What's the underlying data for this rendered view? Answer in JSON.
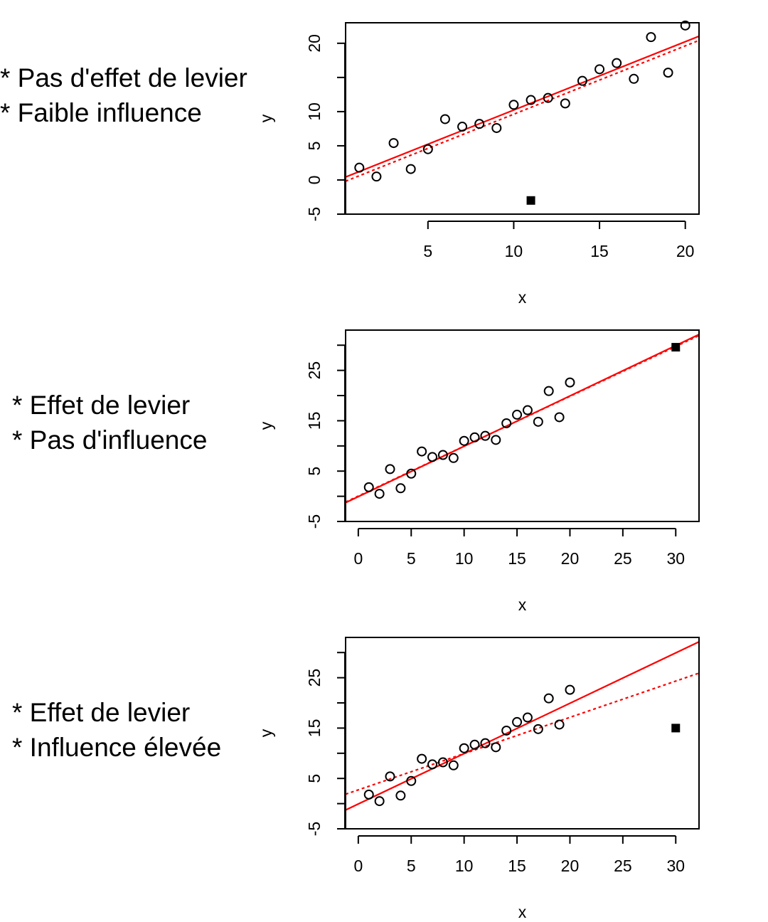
{
  "colors": {
    "fit_line": "#ff0000",
    "points": "#000000",
    "background": "#ffffff"
  },
  "chart_data": [
    {
      "type": "scatter",
      "caption": [
        "* Pas d'effet de levier",
        "* Faible influence"
      ],
      "xlabel": "x",
      "ylabel": "y",
      "xlim": [
        0.2,
        20.8
      ],
      "ylim": [
        -5,
        23
      ],
      "xticks": [
        "5",
        "10",
        "15",
        "20"
      ],
      "xtick_values": [
        5,
        10,
        15,
        20
      ],
      "yticks": [
        "-5",
        "0",
        "5",
        "10",
        "15",
        "20"
      ],
      "ytick_values": [
        -5,
        0,
        5,
        10,
        15,
        20
      ],
      "ytick_labeled": [
        true,
        true,
        true,
        true,
        false,
        true
      ],
      "points": {
        "x": [
          1,
          2,
          3,
          4,
          5,
          6,
          7,
          8,
          9,
          10,
          11,
          12,
          13,
          14,
          15,
          16,
          17,
          18,
          19,
          20
        ],
        "y": [
          1.8,
          0.5,
          5.4,
          1.6,
          4.5,
          8.9,
          7.8,
          8.2,
          7.6,
          11.0,
          11.7,
          12.0,
          11.2,
          14.5,
          16.2,
          17.1,
          14.8,
          20.9,
          15.7,
          22.6
        ]
      },
      "special_point": {
        "x": 11,
        "y": -3.0
      },
      "fit_solid": {
        "intercept": 0.23,
        "slope": 1.0
      },
      "fit_dashed": {
        "intercept": -0.38,
        "slope": 1.0
      }
    },
    {
      "type": "scatter",
      "caption": [
        "* Effet de levier",
        "* Pas d'influence"
      ],
      "xlabel": "x",
      "ylabel": "y",
      "xlim": [
        -1.2,
        32.2
      ],
      "ylim": [
        -5,
        33
      ],
      "xticks": [
        "0",
        "5",
        "10",
        "15",
        "20",
        "25",
        "30"
      ],
      "xtick_values": [
        0,
        5,
        10,
        15,
        20,
        25,
        30
      ],
      "yticks": [
        "-5",
        "0",
        "5",
        "10",
        "15",
        "20",
        "25",
        "30"
      ],
      "ytick_values": [
        -5,
        0,
        5,
        10,
        15,
        20,
        25,
        30
      ],
      "ytick_labeled": [
        true,
        false,
        true,
        false,
        true,
        false,
        true,
        false
      ],
      "points": {
        "x": [
          1,
          2,
          3,
          4,
          5,
          6,
          7,
          8,
          9,
          10,
          11,
          12,
          13,
          14,
          15,
          16,
          17,
          18,
          19,
          20
        ],
        "y": [
          1.8,
          0.5,
          5.4,
          1.6,
          4.5,
          8.9,
          7.8,
          8.2,
          7.6,
          11.0,
          11.7,
          12.0,
          11.2,
          14.5,
          16.2,
          17.1,
          14.8,
          20.9,
          15.7,
          22.6
        ]
      },
      "special_point": {
        "x": 30,
        "y": 29.6
      },
      "fit_solid": {
        "intercept": -0.07,
        "slope": 1.0
      },
      "fit_dashed": {
        "intercept": 0.05,
        "slope": 0.99
      }
    },
    {
      "type": "scatter",
      "caption": [
        "* Effet de levier",
        "* Influence élevée"
      ],
      "xlabel": "x",
      "ylabel": "y",
      "xlim": [
        -1.2,
        32.2
      ],
      "ylim": [
        -5,
        33
      ],
      "xticks": [
        "0",
        "5",
        "10",
        "15",
        "20",
        "25",
        "30"
      ],
      "xtick_values": [
        0,
        5,
        10,
        15,
        20,
        25,
        30
      ],
      "yticks": [
        "-5",
        "0",
        "5",
        "10",
        "15",
        "20",
        "25",
        "30"
      ],
      "ytick_values": [
        -5,
        0,
        5,
        10,
        15,
        20,
        25,
        30
      ],
      "ytick_labeled": [
        true,
        false,
        true,
        false,
        true,
        false,
        true,
        false
      ],
      "points": {
        "x": [
          1,
          2,
          3,
          4,
          5,
          6,
          7,
          8,
          9,
          10,
          11,
          12,
          13,
          14,
          15,
          16,
          17,
          18,
          19,
          20
        ],
        "y": [
          1.8,
          0.5,
          5.4,
          1.6,
          4.5,
          8.9,
          7.8,
          8.2,
          7.6,
          11.0,
          11.7,
          12.0,
          11.2,
          14.5,
          16.2,
          17.1,
          14.8,
          20.9,
          15.7,
          22.6
        ]
      },
      "special_point": {
        "x": 30,
        "y": 15.0
      },
      "fit_solid": {
        "intercept": -0.07,
        "slope": 1.0
      },
      "fit_dashed": {
        "intercept": 2.73,
        "slope": 0.72
      }
    }
  ]
}
